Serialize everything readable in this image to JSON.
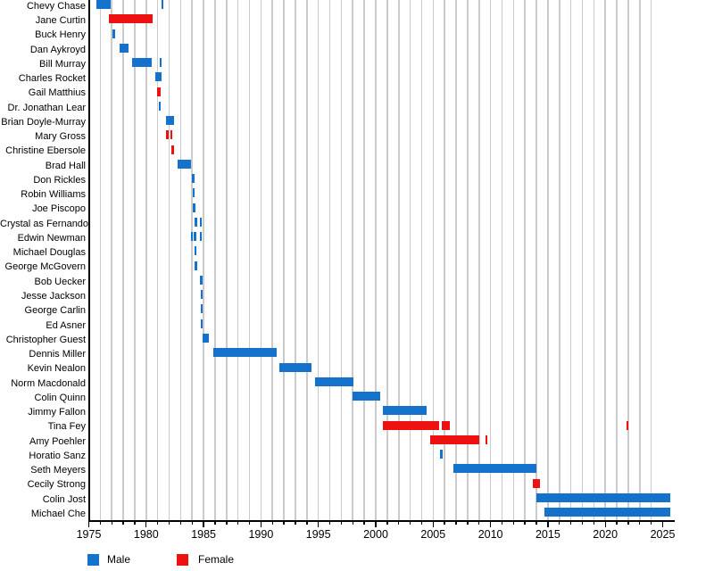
{
  "chart_data": {
    "type": "bar",
    "variant": "gantt-timeline",
    "title": "",
    "xlabel": "",
    "ylabel": "",
    "colors": {
      "male": "#1472cd",
      "female": "#ee1111",
      "grid": "#cbcbcb",
      "axis": "#000000",
      "text": "#000000"
    },
    "x_axis": {
      "min": 1975,
      "max": 2026,
      "major_ticks": [
        1975,
        1980,
        1985,
        1990,
        1995,
        2000,
        2005,
        2010,
        2015,
        2020,
        2025
      ],
      "tick_labels": [
        "1975",
        "1980",
        "1985",
        "1990",
        "1995",
        "2000",
        "2005",
        "2010",
        "2015",
        "2020",
        "2025"
      ],
      "minor_tick_step": 1,
      "gridlines": {
        "start": 1976,
        "end": 2024,
        "step": 1
      }
    },
    "legend": [
      {
        "label": "Male",
        "key": "male"
      },
      {
        "label": "Female",
        "key": "female"
      }
    ],
    "rows": [
      {
        "name": "Chevy Chase",
        "gender": "male",
        "segments": [
          [
            1975.66,
            1976.94
          ]
        ],
        "marks": [
          1981.4
        ]
      },
      {
        "name": "Jane Curtin",
        "gender": "female",
        "segments": [
          [
            1976.77,
            1980.56
          ]
        ],
        "marks": []
      },
      {
        "name": "Buck Henry",
        "gender": "male",
        "segments": [],
        "marks": [
          1977.18
        ]
      },
      {
        "name": "Dan Aykroyd",
        "gender": "male",
        "segments": [
          [
            1977.71,
            1978.44
          ]
        ],
        "marks": []
      },
      {
        "name": "Bill Murray",
        "gender": "male",
        "segments": [
          [
            1978.8,
            1980.5
          ]
        ],
        "marks": [
          1981.26
        ]
      },
      {
        "name": "Charles Rocket",
        "gender": "male",
        "segments": [
          [
            1980.82,
            1981.3
          ]
        ],
        "marks": []
      },
      {
        "name": "Gail Matthius",
        "gender": "female",
        "segments": [
          [
            1980.95,
            1981.26
          ]
        ],
        "marks": []
      },
      {
        "name": "Dr. Jonathan Lear",
        "gender": "male",
        "segments": [],
        "marks": [
          1981.17
        ]
      },
      {
        "name": "Brian Doyle-Murray",
        "gender": "male",
        "segments": [
          [
            1981.73,
            1982.43
          ]
        ],
        "marks": []
      },
      {
        "name": "Mary Gross",
        "gender": "female",
        "segments": [
          [
            1981.73,
            1981.98
          ],
          [
            1982.08,
            1982.26
          ]
        ],
        "marks": []
      },
      {
        "name": "Christine Ebersole",
        "gender": "female",
        "segments": [
          [
            1982.17,
            1982.43
          ]
        ],
        "marks": []
      },
      {
        "name": "Brad Hall",
        "gender": "male",
        "segments": [
          [
            1982.76,
            1983.94
          ]
        ],
        "marks": []
      },
      {
        "name": "Don Rickles",
        "gender": "male",
        "segments": [],
        "marks": [
          1984.1
        ]
      },
      {
        "name": "Robin Williams",
        "gender": "male",
        "segments": [],
        "marks": [
          1984.14
        ]
      },
      {
        "name": "Joe Piscopo",
        "gender": "male",
        "segments": [],
        "marks": [
          1984.18
        ]
      },
      {
        "name": "Crystal as Fernando",
        "gender": "male",
        "segments": [
          [
            1984.18,
            1984.42
          ]
        ],
        "marks": [
          1984.74
        ]
      },
      {
        "name": "Edwin Newman",
        "gender": "male",
        "segments": [],
        "marks": [
          1983.98,
          1984.24,
          1984.78
        ]
      },
      {
        "name": "Michael Douglas",
        "gender": "male",
        "segments": [],
        "marks": [
          1984.27
        ]
      },
      {
        "name": "George McGovern",
        "gender": "male",
        "segments": [],
        "marks": [
          1984.32
        ]
      },
      {
        "name": "Bob Uecker",
        "gender": "male",
        "segments": [],
        "marks": [
          1984.8
        ]
      },
      {
        "name": "Jesse Jackson",
        "gender": "male",
        "segments": [],
        "marks": [
          1984.82
        ]
      },
      {
        "name": "George Carlin",
        "gender": "male",
        "segments": [],
        "marks": [
          1984.84
        ]
      },
      {
        "name": "Ed Asner",
        "gender": "male",
        "segments": [],
        "marks": [
          1984.85
        ]
      },
      {
        "name": "Christopher Guest",
        "gender": "male",
        "segments": [
          [
            1984.89,
            1985.46
          ]
        ],
        "marks": []
      },
      {
        "name": "Dennis Miller",
        "gender": "male",
        "segments": [
          [
            1985.85,
            1991.37
          ]
        ],
        "marks": []
      },
      {
        "name": "Kevin Nealon",
        "gender": "male",
        "segments": [
          [
            1991.63,
            1994.4
          ]
        ],
        "marks": []
      },
      {
        "name": "Norm Macdonald",
        "gender": "male",
        "segments": [
          [
            1994.69,
            1998.03
          ]
        ],
        "marks": []
      },
      {
        "name": "Colin Quinn",
        "gender": "male",
        "segments": [
          [
            1997.95,
            2000.36
          ]
        ],
        "marks": []
      },
      {
        "name": "Jimmy Fallon",
        "gender": "male",
        "segments": [
          [
            2000.64,
            2004.43
          ]
        ],
        "marks": []
      },
      {
        "name": "Tina Fey",
        "gender": "female",
        "segments": [
          [
            2000.64,
            2005.5
          ],
          [
            2005.75,
            2006.45
          ]
        ],
        "marks": [
          2021.93
        ]
      },
      {
        "name": "Amy Poehler",
        "gender": "female",
        "segments": [
          [
            2004.72,
            2008.99
          ]
        ],
        "marks": [
          2009.64
        ]
      },
      {
        "name": "Horatio Sanz",
        "gender": "male",
        "segments": [],
        "marks": [
          2005.73
        ]
      },
      {
        "name": "Seth Meyers",
        "gender": "male",
        "segments": [
          [
            2006.77,
            2014.03
          ]
        ],
        "marks": []
      },
      {
        "name": "Cecily Strong",
        "gender": "female",
        "segments": [
          [
            2013.66,
            2014.3
          ]
        ],
        "marks": []
      },
      {
        "name": "Colin Jost",
        "gender": "male",
        "segments": [
          [
            2013.99,
            2025.66
          ]
        ],
        "marks": []
      },
      {
        "name": "Michael Che",
        "gender": "male",
        "segments": [
          [
            2014.69,
            2025.66
          ]
        ],
        "marks": []
      }
    ]
  }
}
